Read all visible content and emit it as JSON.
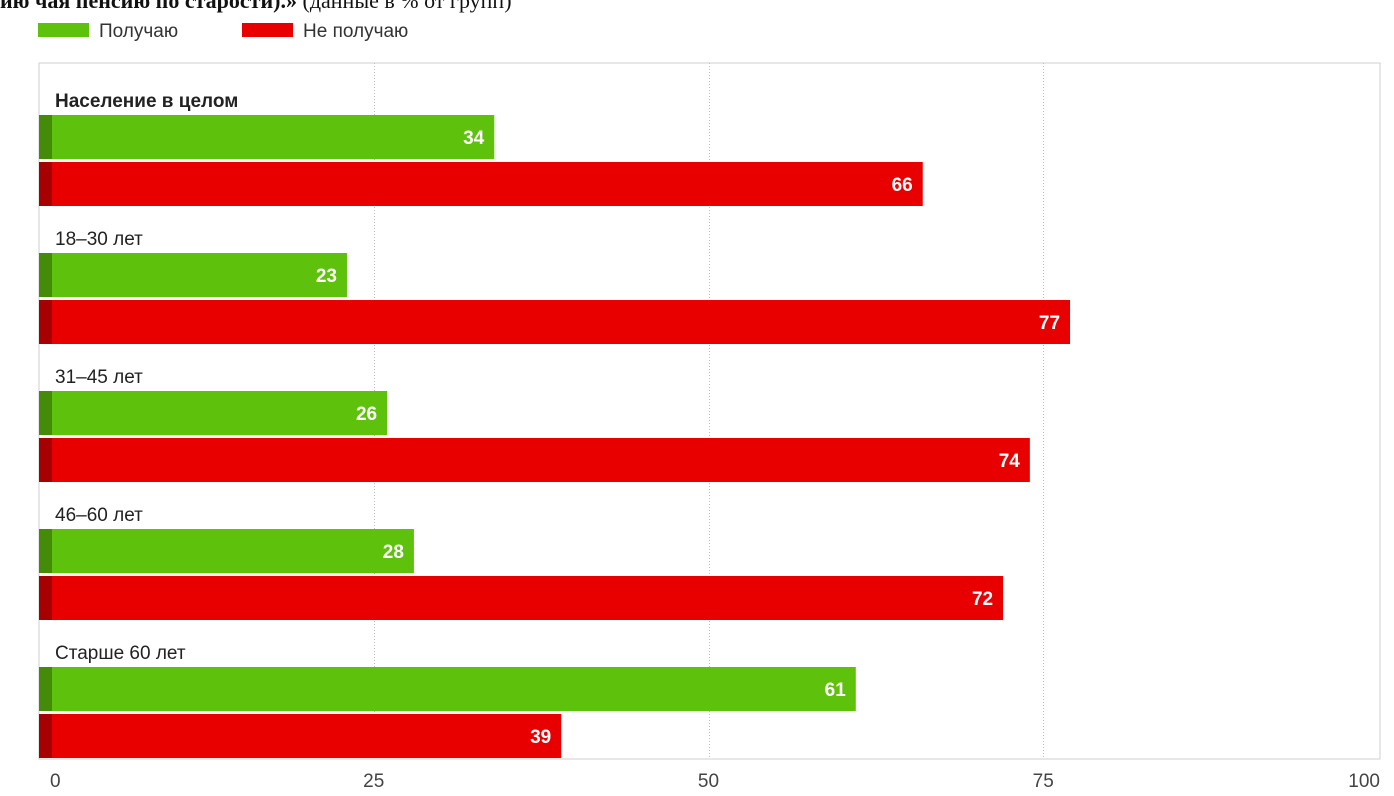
{
  "header": {
    "title_bold": "ию чая пенсию по старости).»",
    "title_normal": " (данные в % от групп)"
  },
  "chart_data": {
    "type": "bar",
    "orientation": "horizontal",
    "categories": [
      "Население в целом",
      "18–30 лет",
      "31–45 лет",
      "46–60 лет",
      "Старше 60 лет"
    ],
    "bold_categories": [
      "Население в целом"
    ],
    "series": [
      {
        "name": "Получаю",
        "color": "#5ec10b",
        "values": [
          34,
          23,
          26,
          28,
          61
        ]
      },
      {
        "name": "Не получаю",
        "color": "#e80000",
        "values": [
          66,
          77,
          74,
          72,
          39
        ]
      }
    ],
    "xlim": [
      0,
      100
    ],
    "xticks": [
      0,
      25,
      50,
      75,
      100
    ],
    "grid": true,
    "legend": "top-left",
    "data_labels": true
  }
}
